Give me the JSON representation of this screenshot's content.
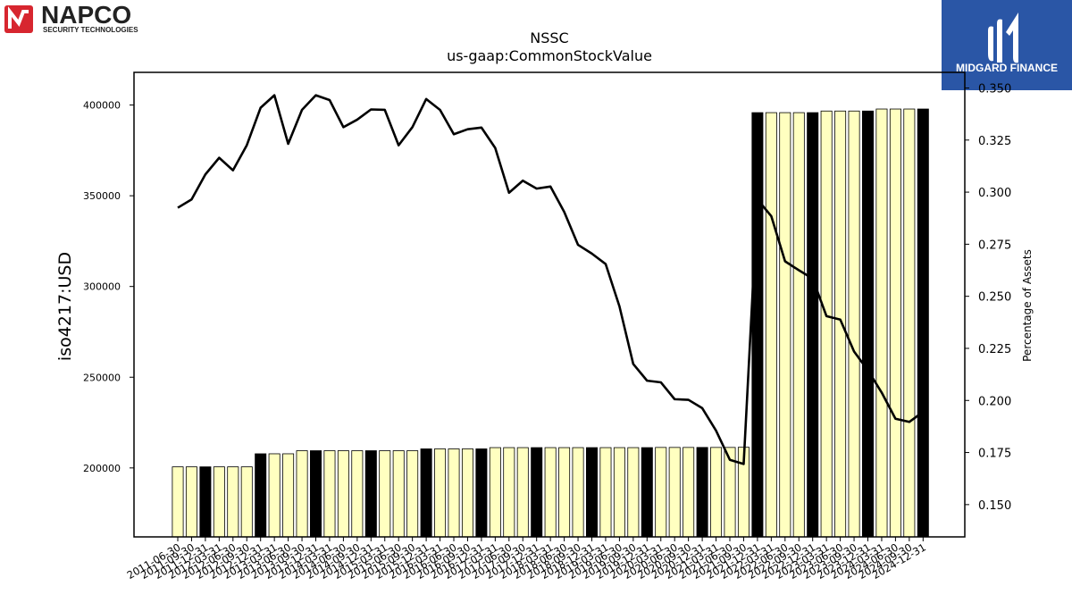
{
  "logos": {
    "napco": {
      "name": "NAPCO",
      "tagline": "SECURITY TECHNOLOGIES",
      "accent": "#d7262f"
    },
    "midgard": {
      "name": "MIDGARD FINANCE",
      "background": "#2a56a6"
    }
  },
  "colors": {
    "bar_fill": "#ffffc0",
    "bar_highlight": "#000000",
    "line": "#000000",
    "bar_edge": "#000000"
  },
  "chart_data": {
    "type": "bar",
    "title": "NSSC",
    "subtitle": "us-gaap:CommonStockValue",
    "ylabel": "iso4217:USD",
    "y2label": "Percentage of Assets",
    "ylim": [
      162000,
      418000
    ],
    "y2lim": [
      0.1345,
      0.3575
    ],
    "yticks": [
      200000,
      250000,
      300000,
      350000,
      400000
    ],
    "yticks_labels": [
      "200000",
      "250000",
      "300000",
      "350000",
      "400000"
    ],
    "y2ticks": [
      0.15,
      0.175,
      0.2,
      0.225,
      0.25,
      0.275,
      0.3,
      0.325,
      0.35
    ],
    "y2ticks_labels": [
      "0.150",
      "0.175",
      "0.200",
      "0.225",
      "0.250",
      "0.275",
      "0.300",
      "0.325",
      "0.350"
    ],
    "categories": [
      "2011-06-30",
      "2011-09-30",
      "2011-12-31",
      "2012-03-31",
      "2012-06-30",
      "2012-09-30",
      "2012-12-31",
      "2013-03-31",
      "2013-06-30",
      "2013-09-30",
      "2013-12-31",
      "2014-03-31",
      "2014-06-30",
      "2014-09-30",
      "2014-12-31",
      "2015-03-31",
      "2015-06-30",
      "2015-09-30",
      "2015-12-31",
      "2016-03-31",
      "2016-06-30",
      "2016-09-30",
      "2016-12-31",
      "2017-03-31",
      "2017-06-30",
      "2017-09-30",
      "2017-12-31",
      "2018-03-31",
      "2018-06-30",
      "2018-09-30",
      "2018-12-31",
      "2019-03-31",
      "2019-06-30",
      "2019-09-30",
      "2019-12-31",
      "2020-03-31",
      "2020-06-30",
      "2020-09-30",
      "2020-12-31",
      "2021-03-31",
      "2021-06-30",
      "2021-09-30",
      "2021-12-31",
      "2022-03-31",
      "2022-06-30",
      "2022-09-30",
      "2022-12-31",
      "2023-03-31",
      "2023-06-30",
      "2023-09-30",
      "2023-12-31",
      "2024-03-31",
      "2024-06-30",
      "2024-09-30",
      "2024-12-31"
    ],
    "series": [
      {
        "kind": "bar",
        "values": [
          200600,
          200600,
          200600,
          200600,
          200600,
          200600,
          207800,
          207800,
          207800,
          209500,
          209500,
          209500,
          209500,
          209500,
          209500,
          209500,
          209500,
          209500,
          210500,
          210500,
          210500,
          210500,
          210500,
          211200,
          211200,
          211200,
          211200,
          211200,
          211200,
          211200,
          211200,
          211200,
          211200,
          211200,
          211200,
          211300,
          211300,
          211300,
          211300,
          211300,
          211300,
          211400,
          395800,
          395800,
          395800,
          395800,
          395800,
          396700,
          396700,
          396700,
          396700,
          397800,
          397800,
          397800,
          397800
        ],
        "highlight": [
          false,
          false,
          true,
          false,
          false,
          false,
          true,
          false,
          false,
          false,
          true,
          false,
          false,
          false,
          true,
          false,
          false,
          false,
          true,
          false,
          false,
          false,
          true,
          false,
          false,
          false,
          true,
          false,
          false,
          false,
          true,
          false,
          false,
          false,
          true,
          false,
          false,
          false,
          true,
          false,
          false,
          false,
          true,
          false,
          false,
          false,
          true,
          false,
          false,
          false,
          true,
          false,
          false,
          false,
          true
        ]
      },
      {
        "kind": "line",
        "axis": "right",
        "values": [
          0.2925,
          0.2965,
          0.3085,
          0.3165,
          0.3105,
          0.3225,
          0.3405,
          0.3465,
          0.3232,
          0.3395,
          0.3465,
          0.3442,
          0.3312,
          0.3348,
          0.3397,
          0.3395,
          0.3225,
          0.3312,
          0.3447,
          0.3395,
          0.3278,
          0.3302,
          0.331,
          0.3212,
          0.2997,
          0.3055,
          0.3017,
          0.3027,
          0.2905,
          0.2747,
          0.2705,
          0.2655,
          0.2452,
          0.2175,
          0.2095,
          0.2087,
          0.2006,
          0.2003,
          0.1963,
          0.1855,
          0.1715,
          0.1695,
          0.2965,
          0.2885,
          0.2668,
          0.2625,
          0.2585,
          0.2405,
          0.2388,
          0.2235,
          0.2145,
          0.2038,
          0.1912,
          0.1897,
          0.1945
        ]
      }
    ]
  }
}
